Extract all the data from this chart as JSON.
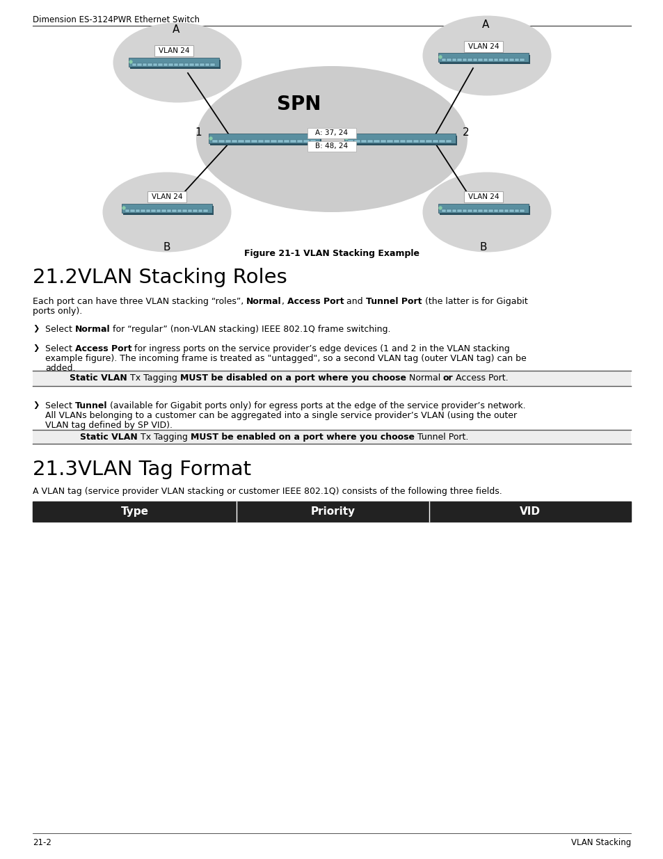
{
  "header_text": "Dimension ES-3124PWR Ethernet Switch",
  "figure_caption": "Figure 21-1 VLAN Stacking Example",
  "section1_title": "21.2VLAN Stacking Roles",
  "section2_title": "21.3VLAN Tag Format",
  "section2_intro": "A VLAN tag (service provider VLAN stacking or customer IEEE 802.1Q) consists of the following three fields.",
  "table_headers": [
    "Type",
    "Priority",
    "VID"
  ],
  "footer_left": "21-2",
  "footer_right": "VLAN Stacking",
  "bg_color": "#ffffff",
  "ellipse_color": "#d4d4d4",
  "spn_ellipse_color": "#cccccc",
  "switch_body_color": "#5a8fa0",
  "switch_dark_color": "#2a5060",
  "switch_port_color": "#8bbfcf",
  "callout_bg": "#eeeeee"
}
